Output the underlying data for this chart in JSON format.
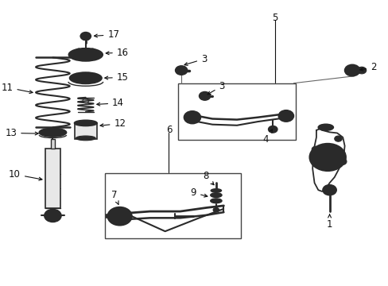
{
  "background_color": "#ffffff",
  "fig_width": 4.89,
  "fig_height": 3.6,
  "dpi": 100,
  "line_color": "#2a2a2a",
  "text_color": "#111111",
  "font_size": 8.5,
  "font_size_small": 7.5,
  "labels": {
    "1": [
      0.868,
      0.082,
      0.868,
      0.13
    ],
    "2": [
      0.94,
      0.415,
      0.905,
      0.415
    ],
    "3a": [
      0.64,
      0.275,
      0.605,
      0.295
    ],
    "3b": [
      0.7,
      0.36,
      0.672,
      0.375
    ],
    "4": [
      0.705,
      0.4,
      0.69,
      0.41
    ],
    "5": [
      0.698,
      0.94,
      0.698,
      0.91
    ],
    "6": [
      0.425,
      0.545,
      0.425,
      0.525
    ],
    "7": [
      0.29,
      0.195,
      0.308,
      0.215
    ],
    "8": [
      0.63,
      0.49,
      0.63,
      0.465
    ],
    "9": [
      0.6,
      0.435,
      0.618,
      0.44
    ],
    "10": [
      0.048,
      0.38,
      0.088,
      0.38
    ],
    "11": [
      0.028,
      0.65,
      0.072,
      0.64
    ],
    "12": [
      0.272,
      0.455,
      0.23,
      0.44
    ],
    "13": [
      0.028,
      0.53,
      0.072,
      0.52
    ],
    "14": [
      0.272,
      0.57,
      0.23,
      0.56
    ],
    "15": [
      0.272,
      0.66,
      0.22,
      0.655
    ],
    "16": [
      0.272,
      0.745,
      0.22,
      0.75
    ],
    "17": [
      0.272,
      0.845,
      0.225,
      0.84
    ]
  }
}
